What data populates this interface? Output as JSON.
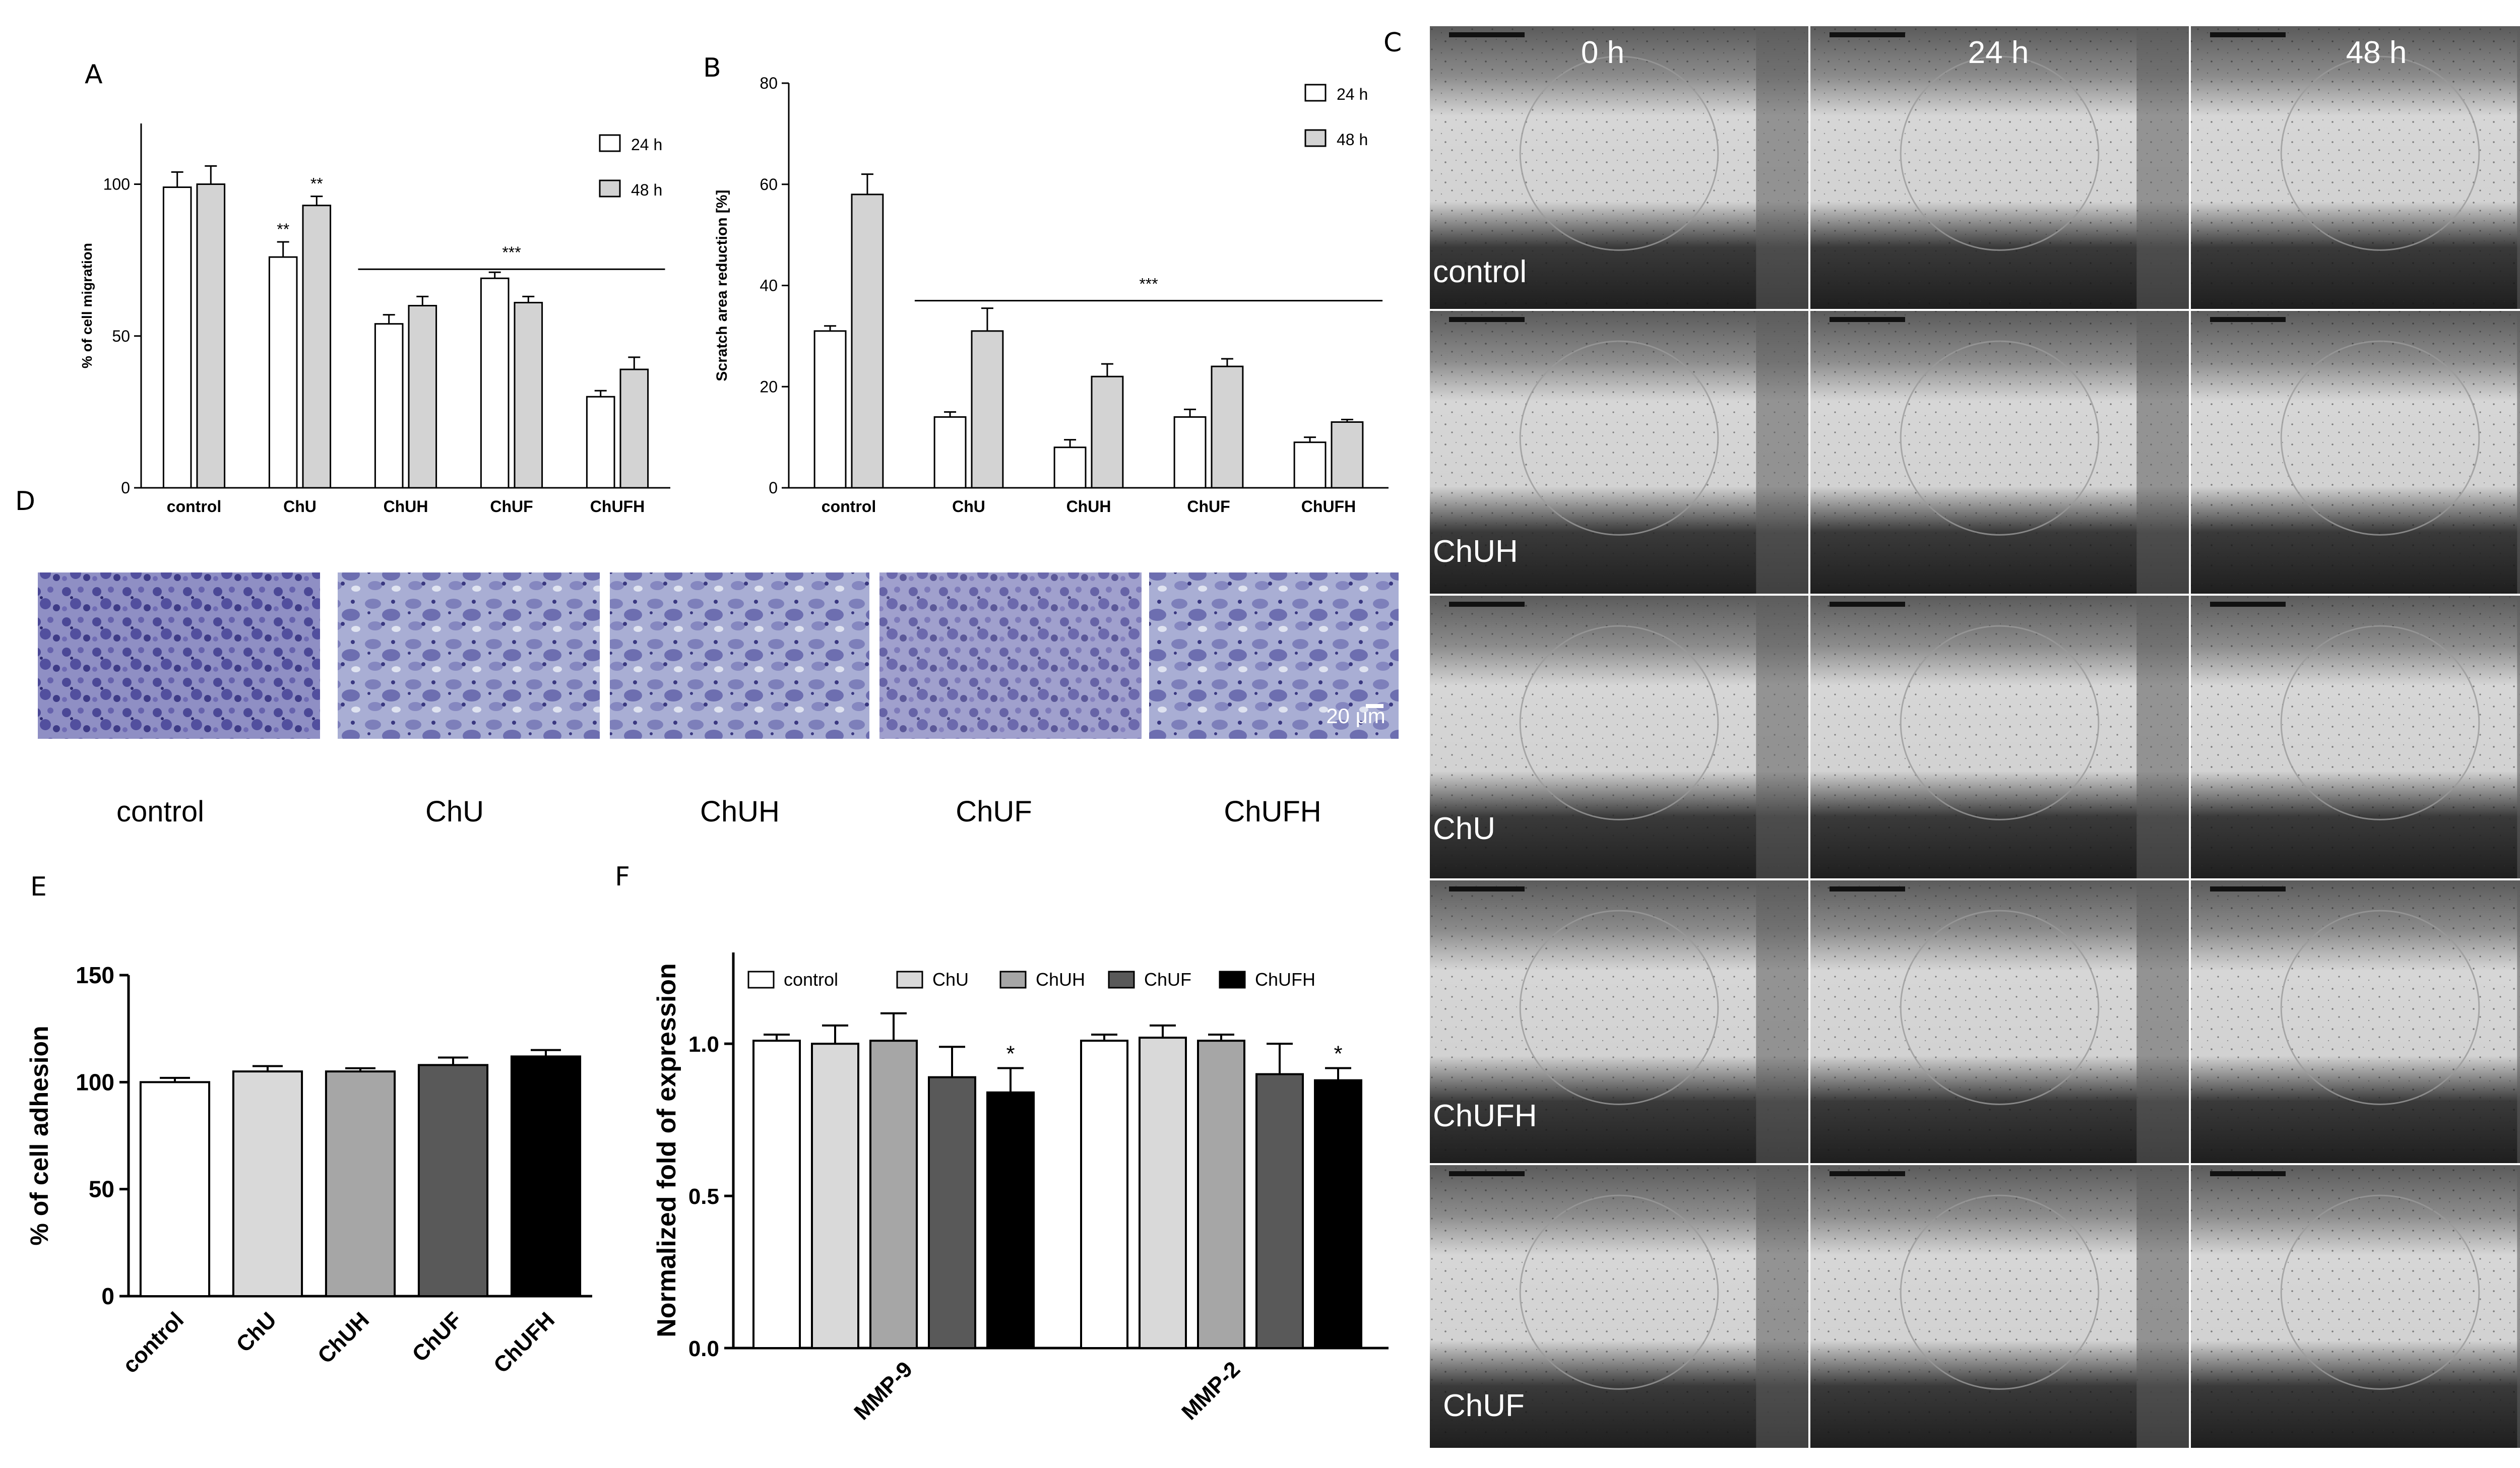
{
  "panels": {
    "A": "A",
    "B": "B",
    "C": "C",
    "D": "D",
    "E": "E",
    "F": "F"
  },
  "colors": {
    "white_bar": "#ffffff",
    "gray_bar": "#d3d3d3",
    "ChU": "#d9d9d9",
    "ChUH": "#a6a6a6",
    "ChUF": "#595959",
    "ChUFH": "#000000",
    "stain": "#5e5aa6",
    "microscope_bg": "#222222"
  },
  "chart_data": [
    {
      "id": "A",
      "type": "bar",
      "categories": [
        "control",
        "ChU",
        "ChUH",
        "ChUF",
        "ChUFH"
      ],
      "series": [
        {
          "name": "24 h",
          "values": [
            99,
            76,
            54,
            69,
            30
          ],
          "errors": [
            5,
            5,
            3,
            2,
            2
          ]
        },
        {
          "name": "48 h",
          "values": [
            100,
            93,
            60,
            61,
            39
          ],
          "errors": [
            6,
            3,
            3,
            2,
            4
          ]
        }
      ],
      "ylabel": "% of cell migration",
      "ylim": [
        0,
        120
      ],
      "yticks": [
        0,
        50,
        100
      ],
      "legend": "top-right",
      "annotations": [
        {
          "text": "**",
          "category": 1,
          "series": 0
        },
        {
          "text": "**",
          "category": 1,
          "series": 1
        },
        {
          "text": "***",
          "span": [
            2,
            4
          ],
          "y": 72
        }
      ]
    },
    {
      "id": "B",
      "type": "bar",
      "categories": [
        "control",
        "ChU",
        "ChUH",
        "ChUF",
        "ChUFH"
      ],
      "series": [
        {
          "name": "24 h",
          "values": [
            31,
            14,
            8,
            14,
            9
          ],
          "errors": [
            1,
            1,
            1.5,
            1.5,
            1
          ]
        },
        {
          "name": "48 h",
          "values": [
            58,
            31,
            22,
            24,
            13
          ],
          "errors": [
            4,
            4.5,
            2.5,
            1.5,
            0.5
          ]
        }
      ],
      "ylabel": "Scratch area reduction [%]",
      "ylim": [
        0,
        80
      ],
      "yticks": [
        0,
        20,
        40,
        60,
        80
      ],
      "legend": "top-right",
      "annotations": [
        {
          "text": "***",
          "span": [
            1,
            4
          ],
          "y": 37
        }
      ]
    },
    {
      "id": "E",
      "type": "bar",
      "categories": [
        "control",
        "ChU",
        "ChUH",
        "ChUF",
        "ChUFH"
      ],
      "values": [
        100,
        105,
        105,
        108,
        112
      ],
      "errors": [
        2,
        2.5,
        1.5,
        3.5,
        3
      ],
      "ylabel": "% of cell adhesion",
      "ylim": [
        0,
        150
      ],
      "yticks": [
        0,
        50,
        100,
        150
      ]
    },
    {
      "id": "F",
      "type": "bar",
      "categories": [
        "MMP-9",
        "MMP-2"
      ],
      "series": [
        {
          "name": "control",
          "values": [
            1.01,
            1.01
          ],
          "errors": [
            0.02,
            0.02
          ]
        },
        {
          "name": "ChU",
          "values": [
            1.0,
            1.02
          ],
          "errors": [
            0.06,
            0.04
          ]
        },
        {
          "name": "ChUH",
          "values": [
            1.01,
            1.01
          ],
          "errors": [
            0.09,
            0.02
          ]
        },
        {
          "name": "ChUF",
          "values": [
            0.89,
            0.9
          ],
          "errors": [
            0.1,
            0.1
          ]
        },
        {
          "name": "ChUFH",
          "values": [
            0.84,
            0.88
          ],
          "errors": [
            0.08,
            0.04
          ]
        }
      ],
      "ylabel": "Normalized fold of expression",
      "ylim": [
        0,
        1.3
      ],
      "yticks": [
        "0.0",
        "0.5",
        "1.0"
      ],
      "legend": "top",
      "annotations": [
        {
          "text": "*",
          "category": 0,
          "series": 4
        },
        {
          "text": "*",
          "category": 1,
          "series": 4
        }
      ]
    }
  ],
  "panel_c": {
    "timepoints": [
      "0 h",
      "24 h",
      "48 h"
    ],
    "rows": [
      "control",
      "ChUH",
      "ChU",
      "ChUFH",
      "ChUF"
    ]
  },
  "panel_d": {
    "labels": [
      "control",
      "ChU",
      "ChUH",
      "ChUF",
      "ChUFH"
    ],
    "scalebar": "20 μm"
  }
}
